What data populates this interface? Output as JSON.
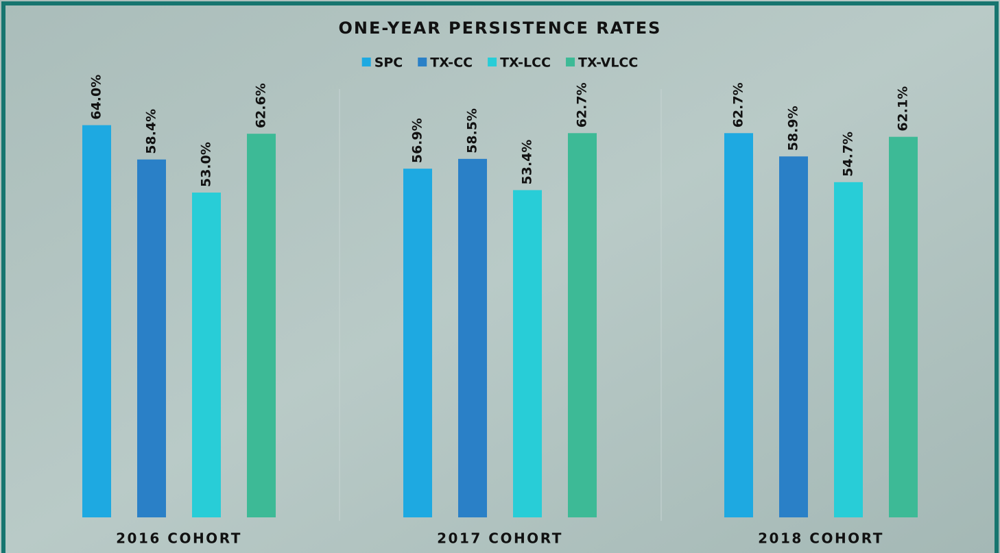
{
  "chart_data": {
    "type": "bar",
    "title": "ONE-YEAR PERSISTENCE RATES",
    "categories": [
      "2016 COHORT",
      "2017 COHORT",
      "2018 COHORT"
    ],
    "series": [
      {
        "name": "SPC",
        "color": "#1ea9e1",
        "values": [
          64.0,
          56.9,
          62.7
        ],
        "value_labels": [
          "64.0%",
          "56.9%",
          "62.7%"
        ]
      },
      {
        "name": "TX-CC",
        "color": "#2a80c7",
        "values": [
          58.4,
          58.5,
          58.9
        ],
        "value_labels": [
          "58.4%",
          "58.5%",
          "58.9%"
        ]
      },
      {
        "name": "TX-LCC",
        "color": "#28cdd7",
        "values": [
          53.0,
          53.4,
          54.7
        ],
        "value_labels": [
          "53.0%",
          "53.4%",
          "54.7%"
        ]
      },
      {
        "name": "TX-VLCC",
        "color": "#3dba96",
        "values": [
          62.6,
          62.7,
          62.1
        ],
        "value_labels": [
          "62.6%",
          "62.7%",
          "62.1%"
        ]
      }
    ],
    "ylim": [
      0,
      70
    ]
  }
}
